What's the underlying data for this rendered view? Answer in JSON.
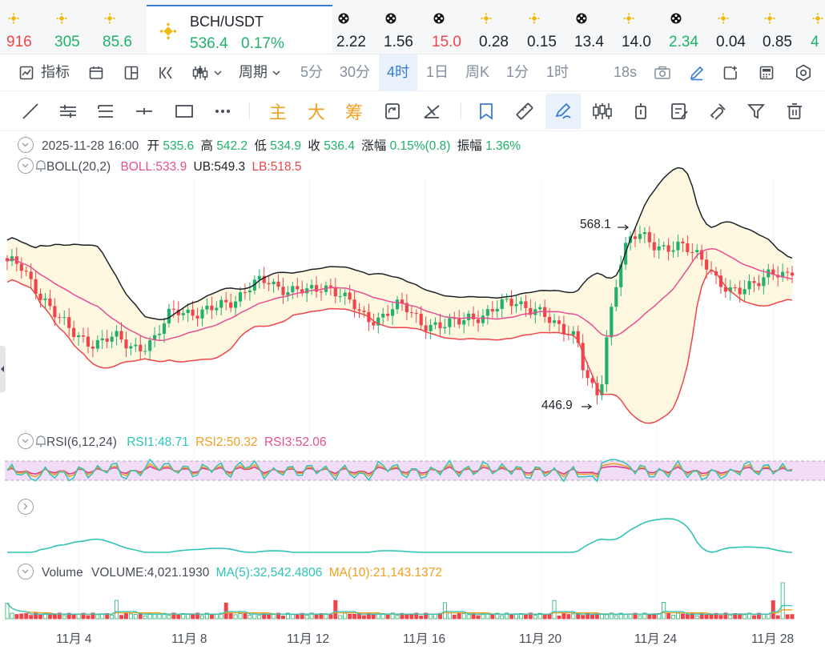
{
  "colors": {
    "up": "#20b26c",
    "down": "#ef454a",
    "accent": "#3a7bd5",
    "boll_mid": "#e4508f",
    "boll_upper": "#1e2329",
    "boll_lower": "#ef454a",
    "rsi1": "#2ec4b6",
    "rsi2": "#f0a020",
    "rsi3": "#d6338f"
  },
  "ticker": [
    {
      "icon": "binance-icon",
      "value": "916",
      "trend": "dn"
    },
    {
      "icon": "binance-icon",
      "value": "305",
      "trend": "up"
    },
    {
      "icon": "binance-icon",
      "value": "85.6",
      "trend": "up"
    },
    {
      "icon": "coin-icon",
      "value": "2.22",
      "trend": "nt"
    },
    {
      "icon": "coin-icon",
      "value": "1.56",
      "trend": "nt"
    },
    {
      "icon": "coin-icon",
      "value": "15.0",
      "trend": "dn"
    },
    {
      "icon": "binance-icon",
      "value": "0.28",
      "trend": "nt"
    },
    {
      "icon": "binance-icon",
      "value": "0.15",
      "trend": "nt"
    },
    {
      "icon": "coin-icon",
      "value": "13.4",
      "trend": "nt"
    },
    {
      "icon": "binance-icon",
      "value": "14.0",
      "trend": "nt"
    },
    {
      "icon": "coin-icon",
      "value": "2.34",
      "trend": "up"
    },
    {
      "icon": "binance-icon",
      "value": "0.04",
      "trend": "nt"
    },
    {
      "icon": "binance-icon",
      "value": "0.85",
      "trend": "nt"
    },
    {
      "icon": "binance-icon",
      "value": "4",
      "trend": "up"
    }
  ],
  "active_pair": {
    "symbol": "BCH/USDT",
    "price": "536.4",
    "change": "0.17%"
  },
  "toolbar": {
    "indicator": "指标",
    "period": "周期",
    "intervals": [
      "5分",
      "30分",
      "4时",
      "1日",
      "周K",
      "1分",
      "1时"
    ],
    "active_interval": "4时",
    "countdown": "18s"
  },
  "draw_tools": {
    "main": "主",
    "big": "大",
    "chips": "筹"
  },
  "ohlc": {
    "date": "2025-11-28 16:00",
    "open_label": "开",
    "open": "535.6",
    "high_label": "高",
    "high": "542.2",
    "low_label": "低",
    "low": "534.9",
    "close_label": "收",
    "close": "536.4",
    "change_label": "涨幅",
    "change": "0.15%(0.8)",
    "amp_label": "振幅",
    "amp": "1.36%"
  },
  "boll": {
    "name": "BOLL(20,2)",
    "mid": "BOLL:533.9",
    "ub": "UB:549.3",
    "lb": "LB:518.5"
  },
  "rsi": {
    "name": "RSI(6,12,24)",
    "rsi1": "RSI1:48.71",
    "rsi2": "RSI2:50.32",
    "rsi3": "RSI3:52.06"
  },
  "volume": {
    "name": "Volume",
    "vol": "VOLUME:4,021.1930",
    "ma5": "MA(5):32,542.4806",
    "ma10": "MA(10):21,143.1372"
  },
  "annotations": {
    "high": "568.1",
    "low": "446.9"
  },
  "x_labels": [
    "11月 4",
    "11月 8",
    "11月 12",
    "11月 16",
    "11月 20",
    "11月 24",
    "11月 28"
  ],
  "chart_data": {
    "type": "candlestick",
    "interval": "4h",
    "y_range": [
      440,
      600
    ],
    "marked_high": 568.1,
    "marked_low": 446.9,
    "last": {
      "open": 535.6,
      "high": 542.2,
      "low": 534.9,
      "close": 536.4
    },
    "boll_last": {
      "mid": 533.9,
      "upper": 549.3,
      "lower": 518.5
    },
    "rsi_last": {
      "rsi6": 48.71,
      "rsi12": 50.32,
      "rsi24": 52.06
    },
    "volume_last": {
      "volume": 4021.193,
      "ma5": 32542.4806,
      "ma10": 21143.1372
    },
    "close_path": [
      546,
      544,
      540,
      532,
      526,
      520,
      513,
      506,
      500,
      496,
      494,
      492,
      492,
      494,
      495,
      492,
      490,
      489,
      490,
      492,
      500,
      510,
      515,
      513,
      512,
      510,
      512,
      515,
      518,
      520,
      522,
      526,
      530,
      532,
      533,
      530,
      528,
      526,
      526,
      525,
      527,
      530,
      529,
      525,
      520,
      516,
      510,
      508,
      508,
      510,
      514,
      516,
      514,
      510,
      505,
      503,
      502,
      502,
      505,
      508,
      510,
      509,
      508,
      512,
      516,
      520,
      521,
      517,
      513,
      511,
      508,
      505,
      503,
      500,
      495,
      470,
      460,
      455,
      500,
      530,
      552,
      560,
      563,
      561,
      558,
      556,
      555,
      555,
      554,
      552,
      550,
      545,
      535,
      528,
      524,
      525,
      530,
      533,
      535,
      537,
      536,
      535,
      536
    ]
  }
}
